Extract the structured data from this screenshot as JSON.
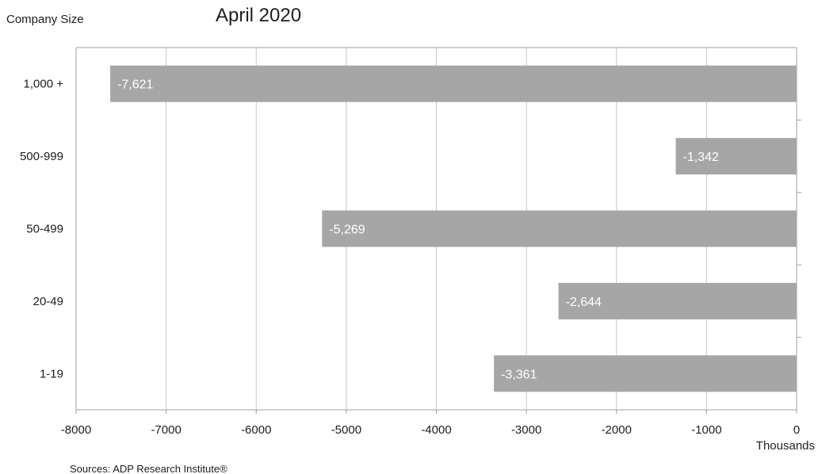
{
  "chart_data": {
    "type": "bar",
    "orientation": "horizontal",
    "title": "April 2020",
    "ylabel": "Company Size",
    "xlabel": "",
    "x_unit_label": "Thousands",
    "source": "Sources: ADP Research Institute®",
    "categories": [
      "1,000 +",
      "500-999",
      "50-499",
      "20-49",
      "1-19"
    ],
    "values": [
      -7621,
      -1342,
      -5269,
      -2644,
      -3361
    ],
    "data_labels": [
      "-7,621",
      "-1,342",
      "-5,269",
      "-2,644",
      "-3,361"
    ],
    "xlim": [
      -8000,
      0
    ],
    "x_ticks": [
      -8000,
      -7000,
      -6000,
      -5000,
      -4000,
      -3000,
      -2000,
      -1000,
      0
    ],
    "x_tick_labels": [
      "-8000",
      "-7000",
      "-6000",
      "-5000",
      "-4000",
      "-3000",
      "-2000",
      "-1000",
      "0"
    ],
    "grid": true,
    "legend": "none",
    "colors": {
      "bar": "#a6a6a6",
      "bar_label": "#ffffff",
      "grid": "#c8c8c8",
      "axis": "#a0a0a0",
      "text": "#1e1e1e"
    }
  }
}
